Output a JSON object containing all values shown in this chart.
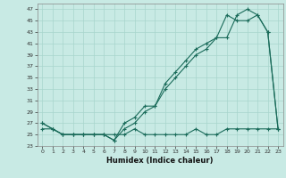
{
  "title": "",
  "xlabel": "Humidex (Indice chaleur)",
  "ylabel": "",
  "background_color": "#c8eae4",
  "grid_color": "#a8d5cc",
  "line_color": "#1a6b5a",
  "hours": [
    0,
    1,
    2,
    3,
    4,
    5,
    6,
    7,
    8,
    9,
    10,
    11,
    12,
    13,
    14,
    15,
    16,
    17,
    18,
    19,
    20,
    21,
    22,
    23
  ],
  "line1": [
    27,
    26,
    25,
    25,
    25,
    25,
    25,
    24,
    27,
    28,
    30,
    30,
    34,
    36,
    38,
    40,
    41,
    42,
    42,
    46,
    47,
    46,
    43,
    26
  ],
  "line2": [
    27,
    26,
    25,
    25,
    25,
    25,
    25,
    24,
    26,
    27,
    29,
    30,
    33,
    35,
    37,
    39,
    40,
    42,
    46,
    45,
    45,
    46,
    43,
    26
  ],
  "line3": [
    26,
    26,
    25,
    25,
    25,
    25,
    25,
    25,
    25,
    26,
    25,
    25,
    25,
    25,
    25,
    26,
    25,
    25,
    26,
    26,
    26,
    26,
    26,
    26
  ],
  "ylim": [
    23,
    48
  ],
  "xlim": [
    -0.5,
    23.5
  ],
  "yticks": [
    23,
    25,
    27,
    29,
    31,
    33,
    35,
    37,
    39,
    41,
    43,
    45,
    47
  ],
  "xticks": [
    0,
    1,
    2,
    3,
    4,
    5,
    6,
    7,
    8,
    9,
    10,
    11,
    12,
    13,
    14,
    15,
    16,
    17,
    18,
    19,
    20,
    21,
    22,
    23
  ]
}
